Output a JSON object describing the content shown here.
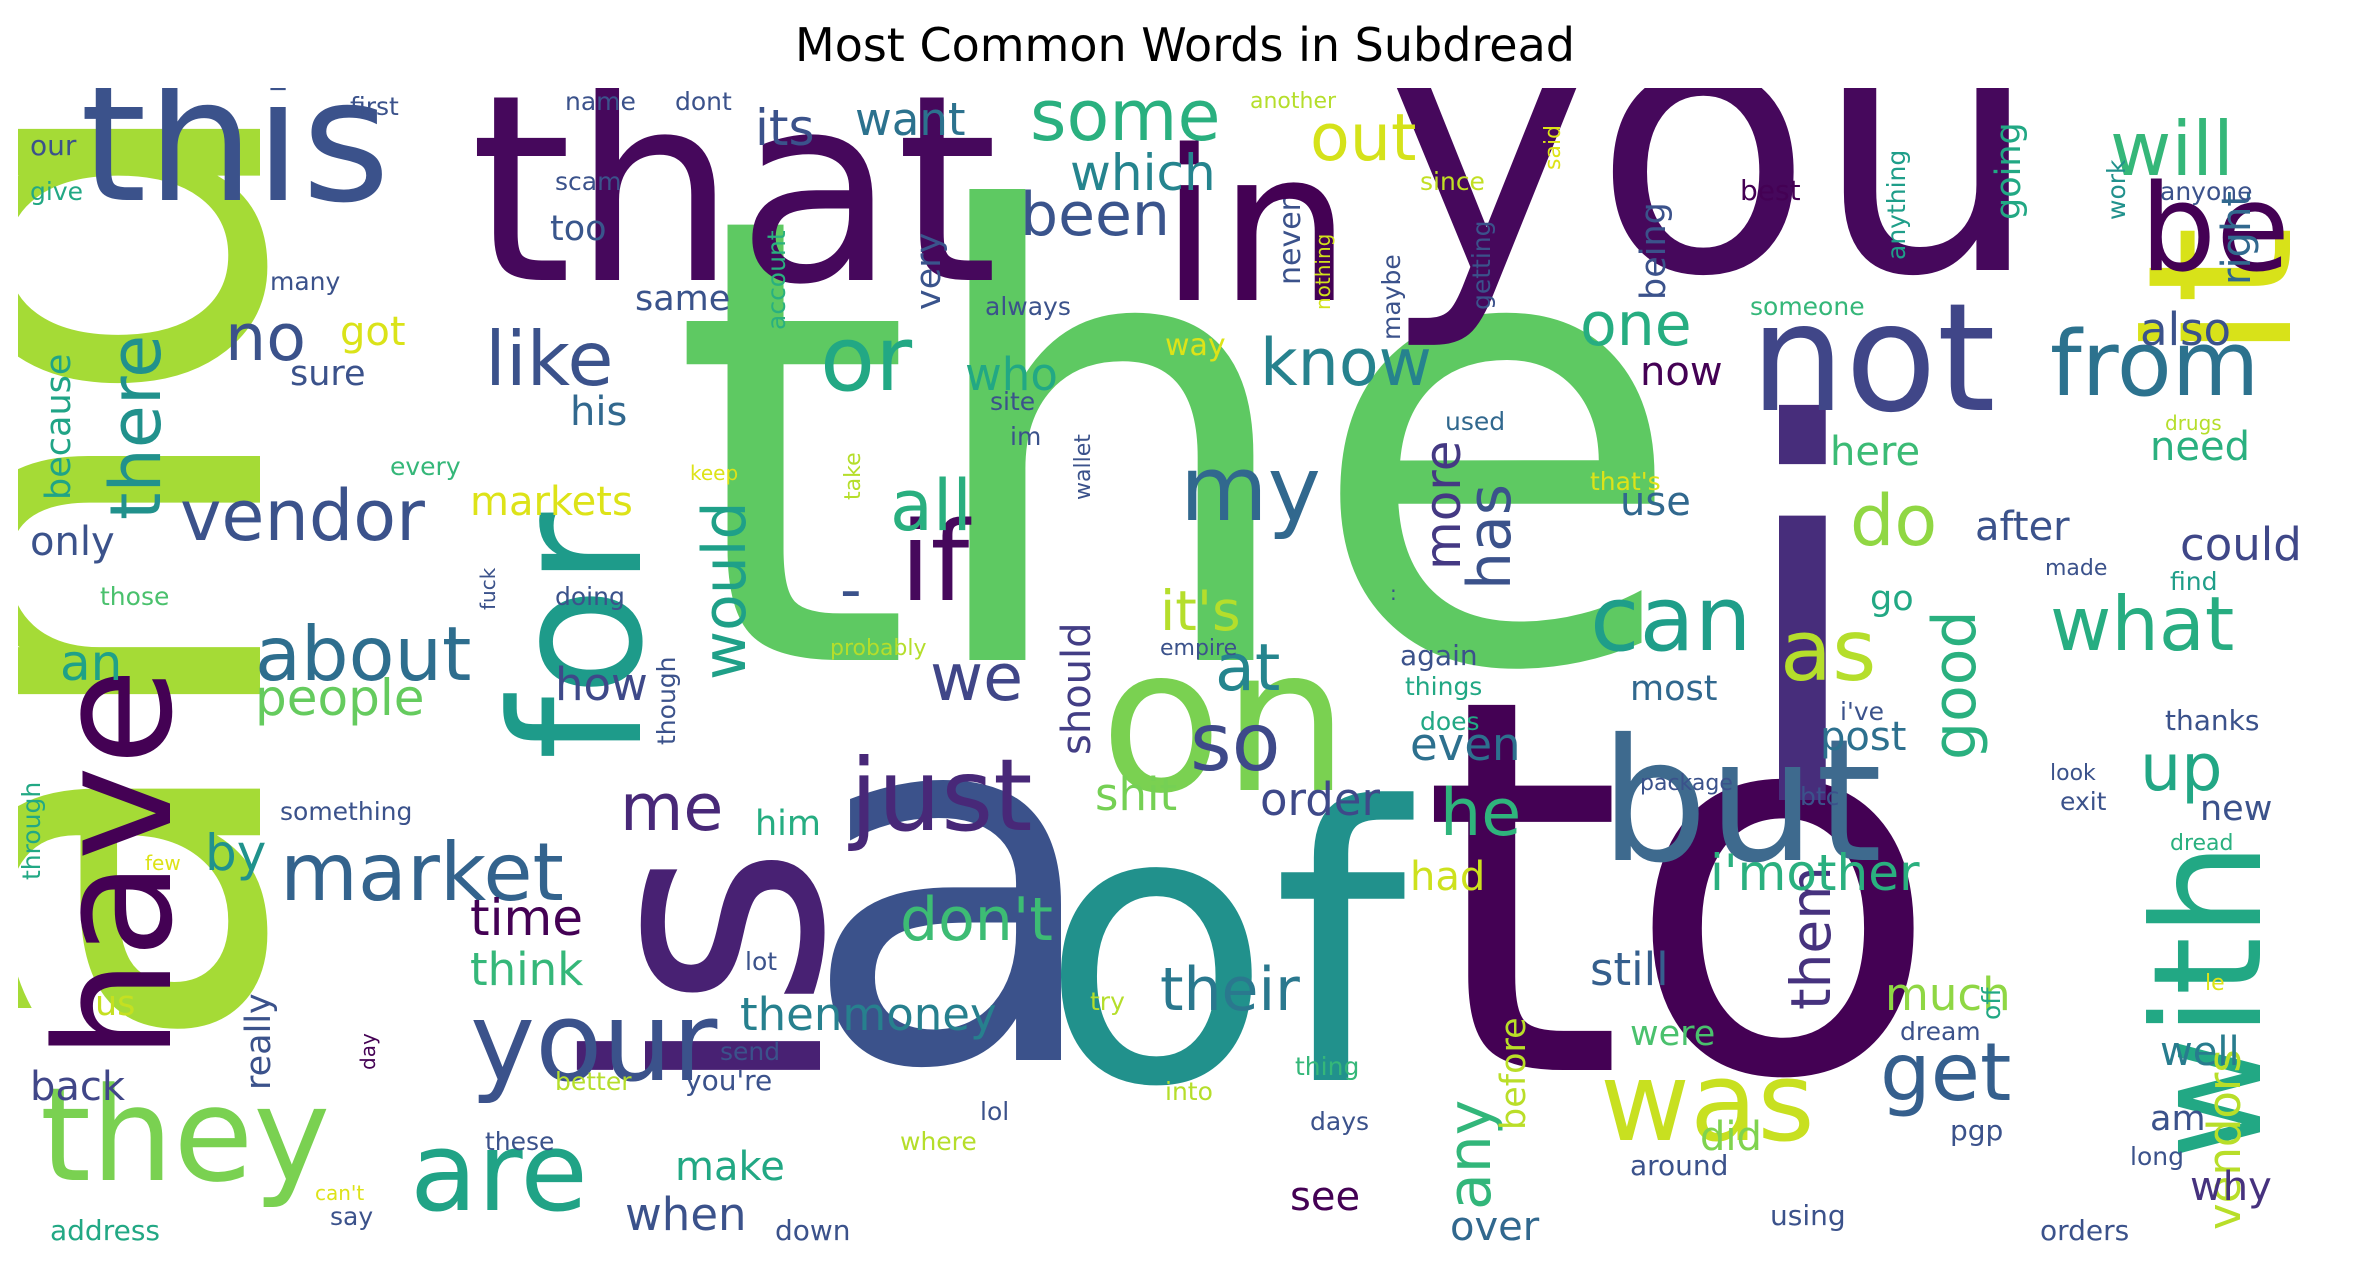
{
  "title": "Most Common Words in Subdread",
  "words": [
    {
      "text": "the",
      "color": "#5ec962"
    },
    {
      "text": "and",
      "color": "#a5db36"
    },
    {
      "text": "you",
      "color": "#46085c"
    },
    {
      "text": "to",
      "color": "#440154"
    },
    {
      "text": "a",
      "color": "#3b528b"
    },
    {
      "text": "that",
      "color": "#46085c"
    },
    {
      "text": "i",
      "color": "#472d7b"
    },
    {
      "text": "of",
      "color": "#21918c"
    },
    {
      "text": "is",
      "color": "#482173"
    },
    {
      "text": "in",
      "color": "#440154"
    },
    {
      "text": "it",
      "color": "#d8e219"
    },
    {
      "text": "this",
      "color": "#3b528b"
    },
    {
      "text": "for",
      "color": "#1e9b8a"
    },
    {
      "text": "on",
      "color": "#7ad151"
    },
    {
      "text": "but",
      "color": "#3e6a8e"
    },
    {
      "text": "have",
      "color": "#440154"
    },
    {
      "text": "not",
      "color": "#404688"
    },
    {
      "text": "with",
      "color": "#22a884"
    },
    {
      "text": "be",
      "color": "#440154"
    },
    {
      "text": "they",
      "color": "#7ad151"
    },
    {
      "text": "was",
      "color": "#c8e020"
    },
    {
      "text": "your",
      "color": "#3b528b"
    },
    {
      "text": "just",
      "color": "#482878"
    },
    {
      "text": "are",
      "color": "#20a386"
    },
    {
      "text": "if",
      "color": "#46085c"
    },
    {
      "text": "or",
      "color": "#22a884"
    },
    {
      "text": "some",
      "color": "#2ab07f"
    },
    {
      "text": "from",
      "color": "#2c728e"
    },
    {
      "text": "my",
      "color": "#31688e"
    },
    {
      "text": "can",
      "color": "#1f9e89"
    },
    {
      "text": "market",
      "color": "#33638d"
    },
    {
      "text": "vendor",
      "color": "#3b528b"
    },
    {
      "text": "will",
      "color": "#35b779"
    },
    {
      "text": "so",
      "color": "#3e4989"
    },
    {
      "text": "get",
      "color": "#355f8d"
    },
    {
      "text": "all",
      "color": "#29af7f"
    },
    {
      "text": "as",
      "color": "#b5de2b"
    },
    {
      "text": "like",
      "color": "#3b528b"
    },
    {
      "text": "there",
      "color": "#21918c"
    },
    {
      "text": "about",
      "color": "#2e6e8e"
    },
    {
      "text": "know",
      "color": "#26828e"
    },
    {
      "text": "what",
      "color": "#27ad81"
    },
    {
      "text": "do",
      "color": "#90d743"
    },
    {
      "text": "out",
      "color": "#d5e21a"
    },
    {
      "text": "been",
      "color": "#3a548c"
    },
    {
      "text": "one",
      "color": "#26ad81"
    },
    {
      "text": "no",
      "color": "#3b528b"
    },
    {
      "text": "we",
      "color": "#404688"
    },
    {
      "text": "at",
      "color": "#25858e"
    },
    {
      "text": "me",
      "color": "#482878"
    },
    {
      "text": "he",
      "color": "#2fb47c"
    },
    {
      "text": "would",
      "color": "#1fa088"
    },
    {
      "text": "up",
      "color": "#22a785"
    },
    {
      "text": "good",
      "color": "#2ab07f"
    },
    {
      "text": "their",
      "color": "#2a788e"
    },
    {
      "text": "any",
      "color": "#32b67a"
    },
    {
      "text": "has",
      "color": "#3b528b"
    },
    {
      "text": "more",
      "color": "#443983"
    },
    {
      "text": "don't",
      "color": "#3dbc74"
    },
    {
      "text": "people",
      "color": "#65cb5e"
    },
    {
      "text": "by",
      "color": "#20928c"
    },
    {
      "text": "an",
      "color": "#1fa188"
    },
    {
      "text": "which",
      "color": "#25848e"
    },
    {
      "text": "its",
      "color": "#3b528b"
    },
    {
      "text": "want",
      "color": "#2c728e"
    },
    {
      "text": "also",
      "color": "#3b528b"
    },
    {
      "text": "who",
      "color": "#22a884"
    },
    {
      "text": "it's",
      "color": "#b5de2b"
    },
    {
      "text": "could",
      "color": "#3f4788"
    },
    {
      "text": "vendors",
      "color": "#b8de29"
    },
    {
      "text": "right",
      "color": "#31688e"
    },
    {
      "text": "them",
      "color": "#46327e"
    },
    {
      "text": "i'mother",
      "color": "#2ab07f"
    },
    {
      "text": "thenmoney",
      "color": "#27808e"
    },
    {
      "text": "time",
      "color": "#440154"
    },
    {
      "text": "think",
      "color": "#35b779"
    },
    {
      "text": "order",
      "color": "#3e4989"
    },
    {
      "text": "shit",
      "color": "#75d054"
    },
    {
      "text": "still",
      "color": "#355f8d"
    },
    {
      "text": "much",
      "color": "#8fd744"
    },
    {
      "text": "need",
      "color": "#2ab07f"
    },
    {
      "text": "here",
      "color": "#3bbb75"
    },
    {
      "text": "now",
      "color": "#440154"
    },
    {
      "text": "use",
      "color": "#31688e"
    },
    {
      "text": "after",
      "color": "#3b528b"
    },
    {
      "text": "even",
      "color": "#2d708e"
    },
    {
      "text": "markets",
      "color": "#dde318"
    },
    {
      "text": "his",
      "color": "#31688e"
    },
    {
      "text": "only",
      "color": "#3b528b"
    },
    {
      "text": "because",
      "color": "#20a486"
    },
    {
      "text": "how",
      "color": "#3e4989"
    },
    {
      "text": "post",
      "color": "#2d708e"
    },
    {
      "text": "got",
      "color": "#dae319"
    },
    {
      "text": "sure",
      "color": "#3b528b"
    },
    {
      "text": "same",
      "color": "#3a538b"
    },
    {
      "text": "too",
      "color": "#39568c"
    },
    {
      "text": "never",
      "color": "#3b528b"
    },
    {
      "text": "going",
      "color": "#22a884"
    },
    {
      "text": "being",
      "color": "#3b528b"
    },
    {
      "text": "very",
      "color": "#3a548c"
    },
    {
      "text": "way",
      "color": "#dde318"
    },
    {
      "text": "should",
      "color": "#433e85"
    },
    {
      "text": "him",
      "color": "#26ad81"
    },
    {
      "text": "had",
      "color": "#cde11d"
    },
    {
      "text": "us",
      "color": "#c5e021"
    },
    {
      "text": "back",
      "color": "#404688"
    },
    {
      "text": "really",
      "color": "#3b528b"
    },
    {
      "text": "make",
      "color": "#22a884"
    },
    {
      "text": "when",
      "color": "#3b528b"
    },
    {
      "text": "see",
      "color": "#440154"
    },
    {
      "text": "over",
      "color": "#31688e"
    },
    {
      "text": "before",
      "color": "#bade28"
    },
    {
      "text": "were",
      "color": "#4ac16d"
    },
    {
      "text": "did",
      "color": "#7fd34e"
    },
    {
      "text": "well",
      "color": "#287c8e"
    },
    {
      "text": "am",
      "color": "#3b528b"
    },
    {
      "text": "why",
      "color": "#46327e"
    },
    {
      "text": "most",
      "color": "#31688e"
    },
    {
      "text": "go",
      "color": "#22a884"
    },
    {
      "text": "new",
      "color": "#3b528b"
    },
    {
      "text": "first",
      "color": "#3b528b"
    },
    {
      "text": "name",
      "color": "#3b528b"
    },
    {
      "text": "dont",
      "color": "#3b528b"
    },
    {
      "text": "another",
      "color": "#b5de2b"
    },
    {
      "text": "said",
      "color": "#dde318"
    },
    {
      "text": "since",
      "color": "#c2df23"
    },
    {
      "text": "scam",
      "color": "#3b528b"
    },
    {
      "text": "account",
      "color": "#2ab07f"
    },
    {
      "text": "nothing",
      "color": "#d2e21b"
    },
    {
      "text": "maybe",
      "color": "#3b528b"
    },
    {
      "text": "getting",
      "color": "#3b528b"
    },
    {
      "text": "anything",
      "color": "#1f9e89"
    },
    {
      "text": "best",
      "color": "#440154"
    },
    {
      "text": "work",
      "color": "#21918c"
    },
    {
      "text": "anyone",
      "color": "#3b528b"
    },
    {
      "text": "someone",
      "color": "#35b779"
    },
    {
      "text": "our",
      "color": "#3b528b"
    },
    {
      "text": "give",
      "color": "#22a884"
    },
    {
      "text": "many",
      "color": "#3b528b"
    },
    {
      "text": "always",
      "color": "#3b528b"
    },
    {
      "text": "site",
      "color": "#3b528b"
    },
    {
      "text": "im",
      "color": "#3b528b"
    },
    {
      "text": "used",
      "color": "#31688e"
    },
    {
      "text": "drugs",
      "color": "#b5de2b"
    },
    {
      "text": "every",
      "color": "#35b779"
    },
    {
      "text": "keep",
      "color": "#dde318"
    },
    {
      "text": "take",
      "color": "#b5de2b"
    },
    {
      "text": "wallet",
      "color": "#3b528b"
    },
    {
      "text": "that's",
      "color": "#dde318"
    },
    {
      "text": "made",
      "color": "#3b528b"
    },
    {
      "text": "find",
      "color": "#1f9e89"
    },
    {
      "text": "those",
      "color": "#4ac16d"
    },
    {
      "text": "fuck",
      "color": "#3b528b"
    },
    {
      "text": "doing",
      "color": "#3b528b"
    },
    {
      "text": "probably",
      "color": "#b5de2b"
    },
    {
      "text": "empire",
      "color": "#3b528b"
    },
    {
      "text": "again",
      "color": "#3b528b"
    },
    {
      "text": "things",
      "color": "#22a884"
    },
    {
      "text": "does",
      "color": "#22a884"
    },
    {
      "text": "i've",
      "color": "#3b528b"
    },
    {
      "text": "thanks",
      "color": "#3b528b"
    },
    {
      "text": "though",
      "color": "#3b528b"
    },
    {
      "text": "something",
      "color": "#3b528b"
    },
    {
      "text": "through",
      "color": "#22a884"
    },
    {
      "text": "few",
      "color": "#dde318"
    },
    {
      "text": "package",
      "color": "#3b528b"
    },
    {
      "text": "btc",
      "color": "#3b528b"
    },
    {
      "text": "look",
      "color": "#3b528b"
    },
    {
      "text": "exit",
      "color": "#3b528b"
    },
    {
      "text": "dread",
      "color": "#2ab07f"
    },
    {
      "text": "lot",
      "color": "#3b528b"
    },
    {
      "text": "try",
      "color": "#b5de2b"
    },
    {
      "text": "off",
      "color": "#22a884"
    },
    {
      "text": "le",
      "color": "#dde318"
    },
    {
      "text": "day",
      "color": "#440154"
    },
    {
      "text": "send",
      "color": "#3b528b"
    },
    {
      "text": "dream",
      "color": "#3b528b"
    },
    {
      "text": "thing",
      "color": "#35b779"
    },
    {
      "text": "better",
      "color": "#b5de2b"
    },
    {
      "text": "you're",
      "color": "#3b528b"
    },
    {
      "text": "into",
      "color": "#b5de2b"
    },
    {
      "text": "lol",
      "color": "#3b528b"
    },
    {
      "text": "pgp",
      "color": "#3b528b"
    },
    {
      "text": "these",
      "color": "#3b528b"
    },
    {
      "text": "where",
      "color": "#b5de2b"
    },
    {
      "text": "days",
      "color": "#3b528b"
    },
    {
      "text": "around",
      "color": "#3b528b"
    },
    {
      "text": "long",
      "color": "#3b528b"
    },
    {
      "text": "can't",
      "color": "#dde318"
    },
    {
      "text": "say",
      "color": "#3b528b"
    },
    {
      "text": "address",
      "color": "#22a884"
    },
    {
      "text": "down",
      "color": "#3b528b"
    },
    {
      "text": "using",
      "color": "#3b528b"
    },
    {
      "text": "orders",
      "color": "#3b528b"
    },
    {
      "text": "-",
      "color": "#3b528b"
    },
    {
      "text": ":",
      "color": "#3b528b"
    }
  ]
}
